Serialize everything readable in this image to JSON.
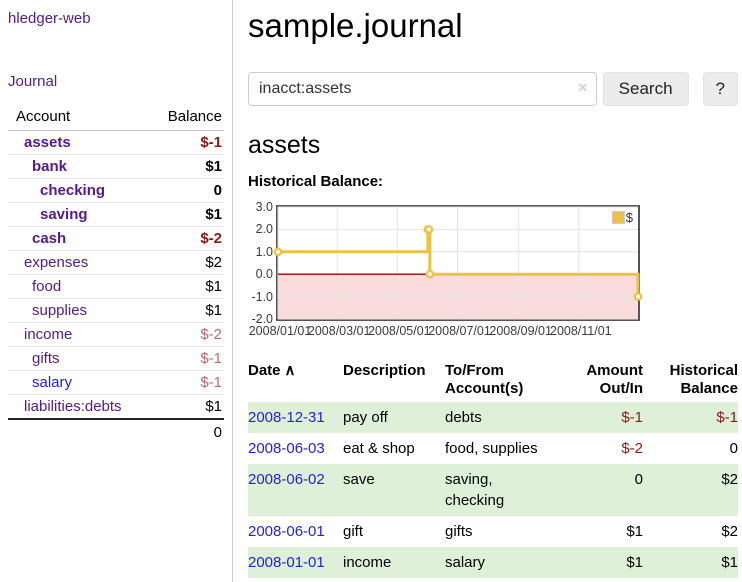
{
  "sidebar": {
    "brand": "hledger-web",
    "journal_link": "Journal",
    "headers": {
      "account": "Account",
      "balance": "Balance"
    },
    "accounts": [
      {
        "name": "assets",
        "balance": "$-1"
      },
      {
        "name": "bank",
        "balance": "$1"
      },
      {
        "name": "checking",
        "balance": "0"
      },
      {
        "name": "saving",
        "balance": "$1"
      },
      {
        "name": "cash",
        "balance": "$-2"
      },
      {
        "name": "expenses",
        "balance": "$2"
      },
      {
        "name": "food",
        "balance": "$1"
      },
      {
        "name": "supplies",
        "balance": "$1"
      },
      {
        "name": "income",
        "balance": "$-2"
      },
      {
        "name": "gifts",
        "balance": "$-1"
      },
      {
        "name": "salary",
        "balance": "$-1"
      },
      {
        "name": "liabilities:debts",
        "balance": "$1"
      }
    ],
    "total": "0"
  },
  "header": {
    "title": "sample.journal"
  },
  "search": {
    "value": "inacct:assets",
    "clear_icon": "×",
    "button_label": "Search",
    "help_label": "?"
  },
  "account_page": {
    "title": "assets",
    "chart_heading": "Historical Balance:"
  },
  "chart_data": {
    "type": "line",
    "style": "step",
    "title": "Historical Balance",
    "ylim": [
      -2,
      3
    ],
    "x_range": [
      "2008-01-01",
      "2008-12-31"
    ],
    "y_ticks": [
      "3.0",
      "2.0",
      "1.0",
      "0.0",
      "-1.0",
      "-2.0"
    ],
    "x_ticks": [
      "2008/01/01",
      "2008/03/01",
      "2008/05/01",
      "2008/07/01",
      "2008/09/01",
      "2008/11/01"
    ],
    "series": [
      {
        "name": "$",
        "color": "#edc240",
        "points": [
          [
            "2008-01-01",
            1
          ],
          [
            "2008-06-01",
            2
          ],
          [
            "2008-06-02",
            2
          ],
          [
            "2008-06-03",
            0
          ],
          [
            "2008-12-31",
            -1
          ]
        ]
      }
    ],
    "legend": {
      "label": "$",
      "position": "top-right"
    },
    "grid_color": "#e3e3e3",
    "negative_region_fill": "#f9dbdb",
    "zero_line_color": "#a40000",
    "border_color": "#545454"
  },
  "register": {
    "headers": {
      "date": "Date",
      "sort_icon": "∧",
      "description": "Description",
      "accounts": "To/From Account(s)",
      "amount": "Amount Out/In",
      "balance": "Historical Balance"
    },
    "rows": [
      {
        "date": "2008-12-31",
        "description": "pay off",
        "accounts": "debts",
        "amount": "$-1",
        "balance": "$-1"
      },
      {
        "date": "2008-06-03",
        "description": "eat & shop",
        "accounts": "food, supplies",
        "amount": "$-2",
        "balance": "0"
      },
      {
        "date": "2008-06-02",
        "description": "save",
        "accounts": "saving, checking",
        "amount": "0",
        "balance": "$2"
      },
      {
        "date": "2008-06-01",
        "description": "gift",
        "accounts": "gifts",
        "amount": "$1",
        "balance": "$2"
      },
      {
        "date": "2008-01-01",
        "description": "income",
        "accounts": "salary",
        "amount": "$1",
        "balance": "$1"
      }
    ]
  },
  "colors": {
    "visited_link_purple": "#551A8B",
    "link_blue": "#2222dd",
    "negative_strong": "#8f1717",
    "negative_soft": "#b96a6a",
    "row_green": "#dff0d8",
    "chart_line_yellow": "#edc240"
  }
}
